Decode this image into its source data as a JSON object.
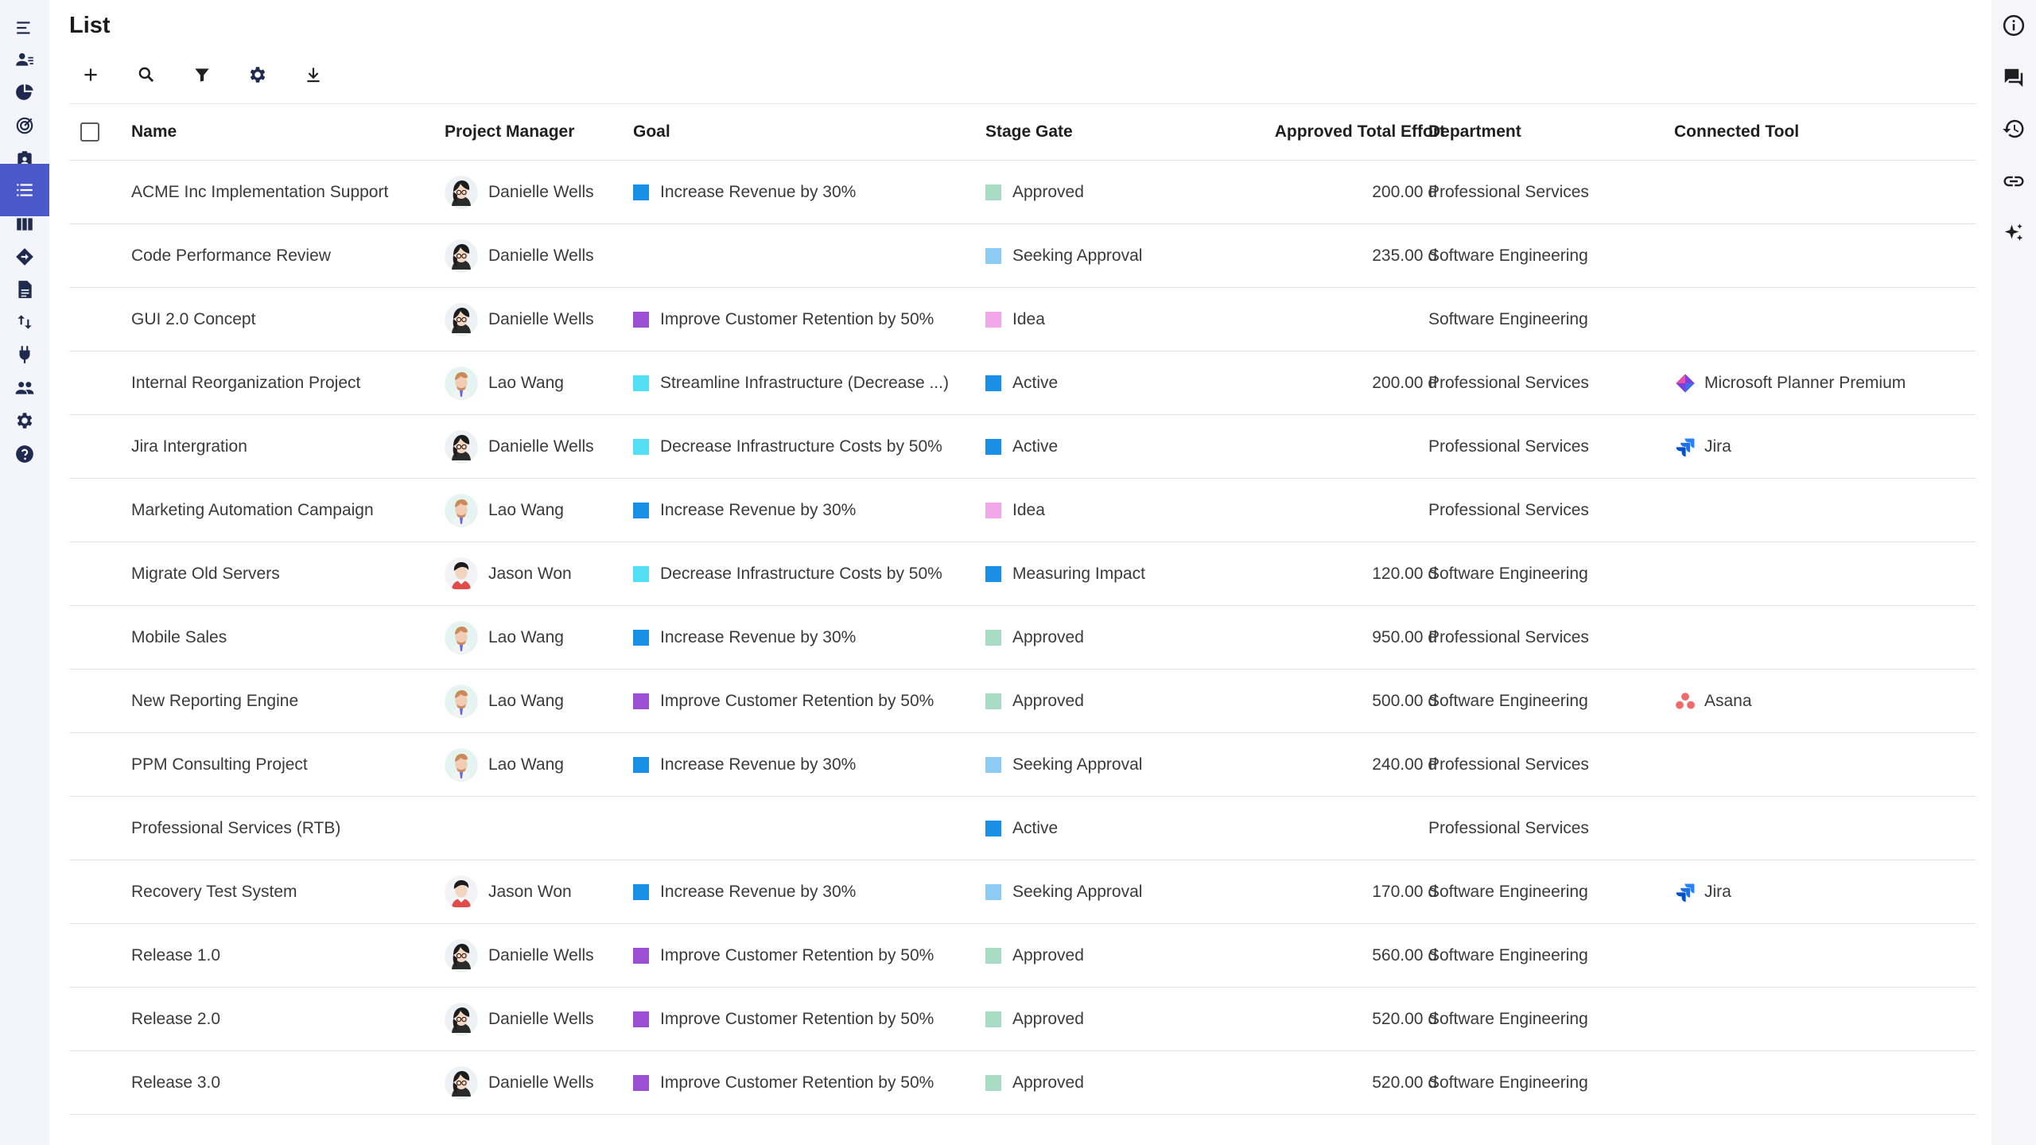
{
  "page": {
    "title": "List"
  },
  "nav": {
    "items": [
      {
        "icon": "menu-icon"
      },
      {
        "icon": "resource-icon"
      },
      {
        "icon": "dashboard-icon"
      },
      {
        "icon": "goals-icon"
      },
      {
        "icon": "assignment-icon"
      },
      {
        "icon": "list-icon",
        "active": true
      },
      {
        "icon": "board-icon"
      },
      {
        "icon": "roadmap-icon"
      },
      {
        "icon": "document-icon"
      },
      {
        "icon": "sort-icon"
      },
      {
        "icon": "plugin-icon"
      },
      {
        "icon": "people-icon"
      },
      {
        "icon": "settings-icon"
      },
      {
        "icon": "help-icon"
      }
    ]
  },
  "rightnav": {
    "items": [
      {
        "icon": "info-icon"
      },
      {
        "icon": "chat-icon"
      },
      {
        "icon": "history-icon"
      },
      {
        "icon": "link-icon"
      },
      {
        "icon": "sparkle-icon"
      }
    ]
  },
  "toolbar": {
    "items": [
      {
        "icon": "add-icon"
      },
      {
        "icon": "search-icon"
      },
      {
        "icon": "filter-icon"
      },
      {
        "icon": "settings-icon"
      },
      {
        "icon": "download-icon"
      }
    ]
  },
  "colors": {
    "accent": "#4a58c9",
    "goal_blue": "#1a8fe8",
    "goal_purple": "#9b4fd4",
    "goal_cyan": "#54e0f4",
    "stage_approved": "#a9dcc4",
    "stage_seeking": "#8ecbf5",
    "stage_idea": "#f2a8e6",
    "stage_active": "#1a8fe8"
  },
  "table": {
    "headers": {
      "name": "Name",
      "pm": "Project Manager",
      "goal": "Goal",
      "stage": "Stage Gate",
      "effort": "Approved Total Effort",
      "dept": "Department",
      "tool": "Connected Tool"
    },
    "rows": [
      {
        "name": "ACME Inc Implementation Support",
        "pm": "Danielle Wells",
        "avatar": "dw",
        "goal": "Increase Revenue by 30%",
        "goal_color": "#1a8fe8",
        "stage": "Approved",
        "stage_color": "#a9dcc4",
        "effort": "200.00 d",
        "dept": "Professional Services",
        "tool": "",
        "tool_icon": ""
      },
      {
        "name": "Code Performance Review",
        "pm": "Danielle Wells",
        "avatar": "dw",
        "goal": "",
        "goal_color": "",
        "stage": "Seeking Approval",
        "stage_color": "#8ecbf5",
        "effort": "235.00 d",
        "dept": "Software Engineering",
        "tool": "",
        "tool_icon": ""
      },
      {
        "name": "GUI 2.0 Concept",
        "pm": "Danielle Wells",
        "avatar": "dw",
        "goal": "Improve Customer Retention by 50%",
        "goal_color": "#9b4fd4",
        "stage": "Idea",
        "stage_color": "#f2a8e6",
        "effort": "",
        "dept": "Software Engineering",
        "tool": "",
        "tool_icon": ""
      },
      {
        "name": "Internal Reorganization Project",
        "pm": "Lao Wang",
        "avatar": "lw",
        "goal": "Streamline Infrastructure (Decrease ...)",
        "goal_color": "#54e0f4",
        "stage": "Active",
        "stage_color": "#1a8fe8",
        "effort": "200.00 d",
        "dept": "Professional Services",
        "tool": "Microsoft Planner Premium",
        "tool_icon": "planner-icon"
      },
      {
        "name": "Jira Intergration",
        "pm": "Danielle Wells",
        "avatar": "dw",
        "goal": "Decrease Infrastructure Costs by 50%",
        "goal_color": "#54e0f4",
        "stage": "Active",
        "stage_color": "#1a8fe8",
        "effort": "",
        "dept": "Professional Services",
        "tool": "Jira",
        "tool_icon": "jira-icon"
      },
      {
        "name": "Marketing Automation Campaign",
        "pm": "Lao Wang",
        "avatar": "lw",
        "goal": "Increase Revenue by 30%",
        "goal_color": "#1a8fe8",
        "stage": "Idea",
        "stage_color": "#f2a8e6",
        "effort": "",
        "dept": "Professional Services",
        "tool": "",
        "tool_icon": ""
      },
      {
        "name": "Migrate Old Servers",
        "pm": "Jason Won",
        "avatar": "jw",
        "goal": "Decrease Infrastructure Costs by 50%",
        "goal_color": "#54e0f4",
        "stage": "Measuring Impact",
        "stage_color": "#1a8fe8",
        "effort": "120.00 d",
        "dept": "Software Engineering",
        "tool": "",
        "tool_icon": ""
      },
      {
        "name": "Mobile Sales",
        "pm": "Lao Wang",
        "avatar": "lw",
        "goal": "Increase Revenue by 30%",
        "goal_color": "#1a8fe8",
        "stage": "Approved",
        "stage_color": "#a9dcc4",
        "effort": "950.00 d",
        "dept": "Professional Services",
        "tool": "",
        "tool_icon": ""
      },
      {
        "name": "New Reporting Engine",
        "pm": "Lao Wang",
        "avatar": "lw",
        "goal": "Improve Customer Retention by 50%",
        "goal_color": "#9b4fd4",
        "stage": "Approved",
        "stage_color": "#a9dcc4",
        "effort": "500.00 d",
        "dept": "Software Engineering",
        "tool": "Asana",
        "tool_icon": "asana-icon"
      },
      {
        "name": "PPM Consulting Project",
        "pm": "Lao Wang",
        "avatar": "lw",
        "goal": "Increase Revenue by 30%",
        "goal_color": "#1a8fe8",
        "stage": "Seeking Approval",
        "stage_color": "#8ecbf5",
        "effort": "240.00 d",
        "dept": "Professional Services",
        "tool": "",
        "tool_icon": ""
      },
      {
        "name": "Professional Services (RTB)",
        "pm": "",
        "avatar": "",
        "goal": "",
        "goal_color": "",
        "stage": "Active",
        "stage_color": "#1a8fe8",
        "effort": "",
        "dept": "Professional Services",
        "tool": "",
        "tool_icon": ""
      },
      {
        "name": "Recovery Test System",
        "pm": "Jason Won",
        "avatar": "jw",
        "goal": "Increase Revenue by 30%",
        "goal_color": "#1a8fe8",
        "stage": "Seeking Approval",
        "stage_color": "#8ecbf5",
        "effort": "170.00 d",
        "dept": "Software Engineering",
        "tool": "Jira",
        "tool_icon": "jira-icon"
      },
      {
        "name": "Release 1.0",
        "pm": "Danielle Wells",
        "avatar": "dw",
        "goal": "Improve Customer Retention by 50%",
        "goal_color": "#9b4fd4",
        "stage": "Approved",
        "stage_color": "#a9dcc4",
        "effort": "560.00 d",
        "dept": "Software Engineering",
        "tool": "",
        "tool_icon": ""
      },
      {
        "name": "Release 2.0",
        "pm": "Danielle Wells",
        "avatar": "dw",
        "goal": "Improve Customer Retention by 50%",
        "goal_color": "#9b4fd4",
        "stage": "Approved",
        "stage_color": "#a9dcc4",
        "effort": "520.00 d",
        "dept": "Software Engineering",
        "tool": "",
        "tool_icon": ""
      },
      {
        "name": "Release 3.0",
        "pm": "Danielle Wells",
        "avatar": "dw",
        "goal": "Improve Customer Retention by 50%",
        "goal_color": "#9b4fd4",
        "stage": "Approved",
        "stage_color": "#a9dcc4",
        "effort": "520.00 d",
        "dept": "Software Engineering",
        "tool": "",
        "tool_icon": ""
      }
    ]
  }
}
